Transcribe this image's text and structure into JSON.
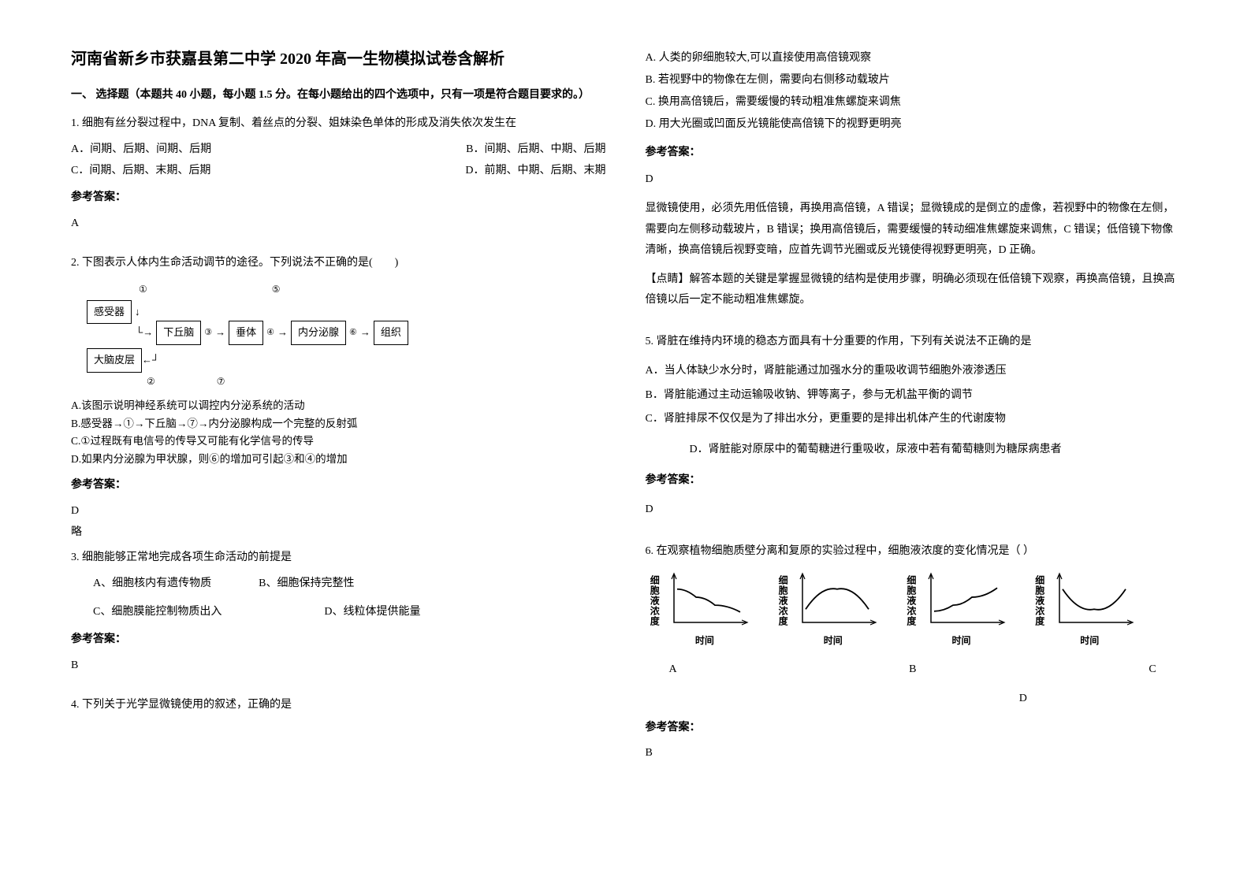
{
  "colors": {
    "text": "#000000",
    "bg": "#ffffff",
    "border": "#000000",
    "chart_line": "#000000"
  },
  "fonts": {
    "body_size": 14,
    "title_size": 20,
    "small_size": 13
  },
  "title": "河南省新乡市获嘉县第二中学 2020 年高一生物模拟试卷含解析",
  "section1_header": "一、 选择题（本题共 40 小题，每小题 1.5 分。在每小题给出的四个选项中，只有一项是符合题目要求的。）",
  "q1": {
    "text": "1. 细胞有丝分裂过程中，DNA 复制、着丝点的分裂、姐妹染色单体的形成及消失依次发生在",
    "optA": "A．间期、后期、间期、后期",
    "optB": "B．间期、后期、中期、后期",
    "optC": "C．间期、后期、末期、后期",
    "optD": "D．前期、中期、后期、末期",
    "answer_label": "参考答案：",
    "answer": "A"
  },
  "q2": {
    "text": "2. 下图表示人体内生命活动调节的途径。下列说法不正确的是(　　)",
    "diagram": {
      "boxes": [
        "感受器",
        "下丘脑",
        "垂体",
        "内分泌腺",
        "组织",
        "大脑皮层"
      ],
      "circles": [
        "①",
        "②",
        "③",
        "④",
        "⑤",
        "⑥",
        "⑦"
      ]
    },
    "subA": "A.该图示说明神经系统可以调控内分泌系统的活动",
    "subB": "B.感受器→①→下丘脑→⑦→内分泌腺构成一个完整的反射弧",
    "subC": "C.①过程既有电信号的传导又可能有化学信号的传导",
    "subD": "D.如果内分泌腺为甲状腺，则⑥的增加可引起③和④的增加",
    "answer_label": "参考答案：",
    "answer": "D",
    "note": "略"
  },
  "q3": {
    "text": "3. 细胞能够正常地完成各项生命活动的前提是",
    "optA": "A、细胞核内有遗传物质",
    "optB": "B、细胞保持完整性",
    "optC": "C、细胞膜能控制物质出入",
    "optD": "D、线粒体提供能量",
    "answer_label": "参考答案：",
    "answer": "B"
  },
  "q4": {
    "text": "4. 下列关于光学显微镜使用的叙述，正确的是",
    "optA": "A. 人类的卵细胞较大,可以直接使用高倍镜观察",
    "optB": "B. 若视野中的物像在左侧，需要向右侧移动载玻片",
    "optC": "C. 换用高倍镜后，需要缓慢的转动粗准焦螺旋来调焦",
    "optD": "D. 用大光圈或凹面反光镜能使高倍镜下的视野更明亮",
    "answer_label": "参考答案：",
    "answer": "D",
    "explanation": "显微镜使用，必须先用低倍镜，再换用高倍镜，A 错误；显微镜成的是倒立的虚像，若视野中的物像在左侧，需要向左侧移动载玻片，B 错误；换用高倍镜后，需要缓慢的转动细准焦螺旋来调焦，C 错误；低倍镜下物像清晰，换高倍镜后视野变暗，应首先调节光圈或反光镜使得视野更明亮，D 正确。",
    "tip": "【点睛】解答本题的关键是掌握显微镜的结构是使用步骤，明确必须现在低倍镜下观察，再换高倍镜，且换高倍镜以后一定不能动粗准焦螺旋。"
  },
  "q5": {
    "text": "5. 肾脏在维持内环境的稳态方面具有十分重要的作用，下列有关说法不正确的是",
    "optA": "A．当人体缺少水分时，肾脏能通过加强水分的重吸收调节细胞外液渗透压",
    "optB": "B．肾脏能通过主动运输吸收钠、钾等离子，参与无机盐平衡的调节",
    "optC": "C．肾脏排尿不仅仅是为了排出水分，更重要的是排出机体产生的代谢废物",
    "optD": "D．肾脏能对原尿中的葡萄糖进行重吸收，尿液中若有葡萄糖则为糖尿病患者",
    "answer_label": "参考答案：",
    "answer": "D"
  },
  "q6": {
    "text": "6. 在观察植物细胞质壁分离和复原的实验过程中，细胞液浓度的变化情况是（  ）",
    "ylabel": "细胞液浓度",
    "xlabel": "时间",
    "charts": [
      {
        "type": "line",
        "shape": "decreasing_curve",
        "points": [
          [
            0,
            0.75
          ],
          [
            0.3,
            0.55
          ],
          [
            0.6,
            0.35
          ],
          [
            1,
            0.18
          ]
        ]
      },
      {
        "type": "line",
        "shape": "hill",
        "points": [
          [
            0,
            0.25
          ],
          [
            0.25,
            0.6
          ],
          [
            0.5,
            0.75
          ],
          [
            0.75,
            0.6
          ],
          [
            1,
            0.25
          ]
        ]
      },
      {
        "type": "line",
        "shape": "increasing_curve",
        "points": [
          [
            0,
            0.2
          ],
          [
            0.3,
            0.35
          ],
          [
            0.6,
            0.55
          ],
          [
            1,
            0.78
          ]
        ]
      },
      {
        "type": "line",
        "shape": "valley",
        "points": [
          [
            0,
            0.75
          ],
          [
            0.25,
            0.4
          ],
          [
            0.5,
            0.25
          ],
          [
            0.75,
            0.4
          ],
          [
            1,
            0.75
          ]
        ]
      }
    ],
    "labels": [
      "A",
      "B",
      "C",
      "D"
    ],
    "answer_label": "参考答案：",
    "answer": "B"
  }
}
